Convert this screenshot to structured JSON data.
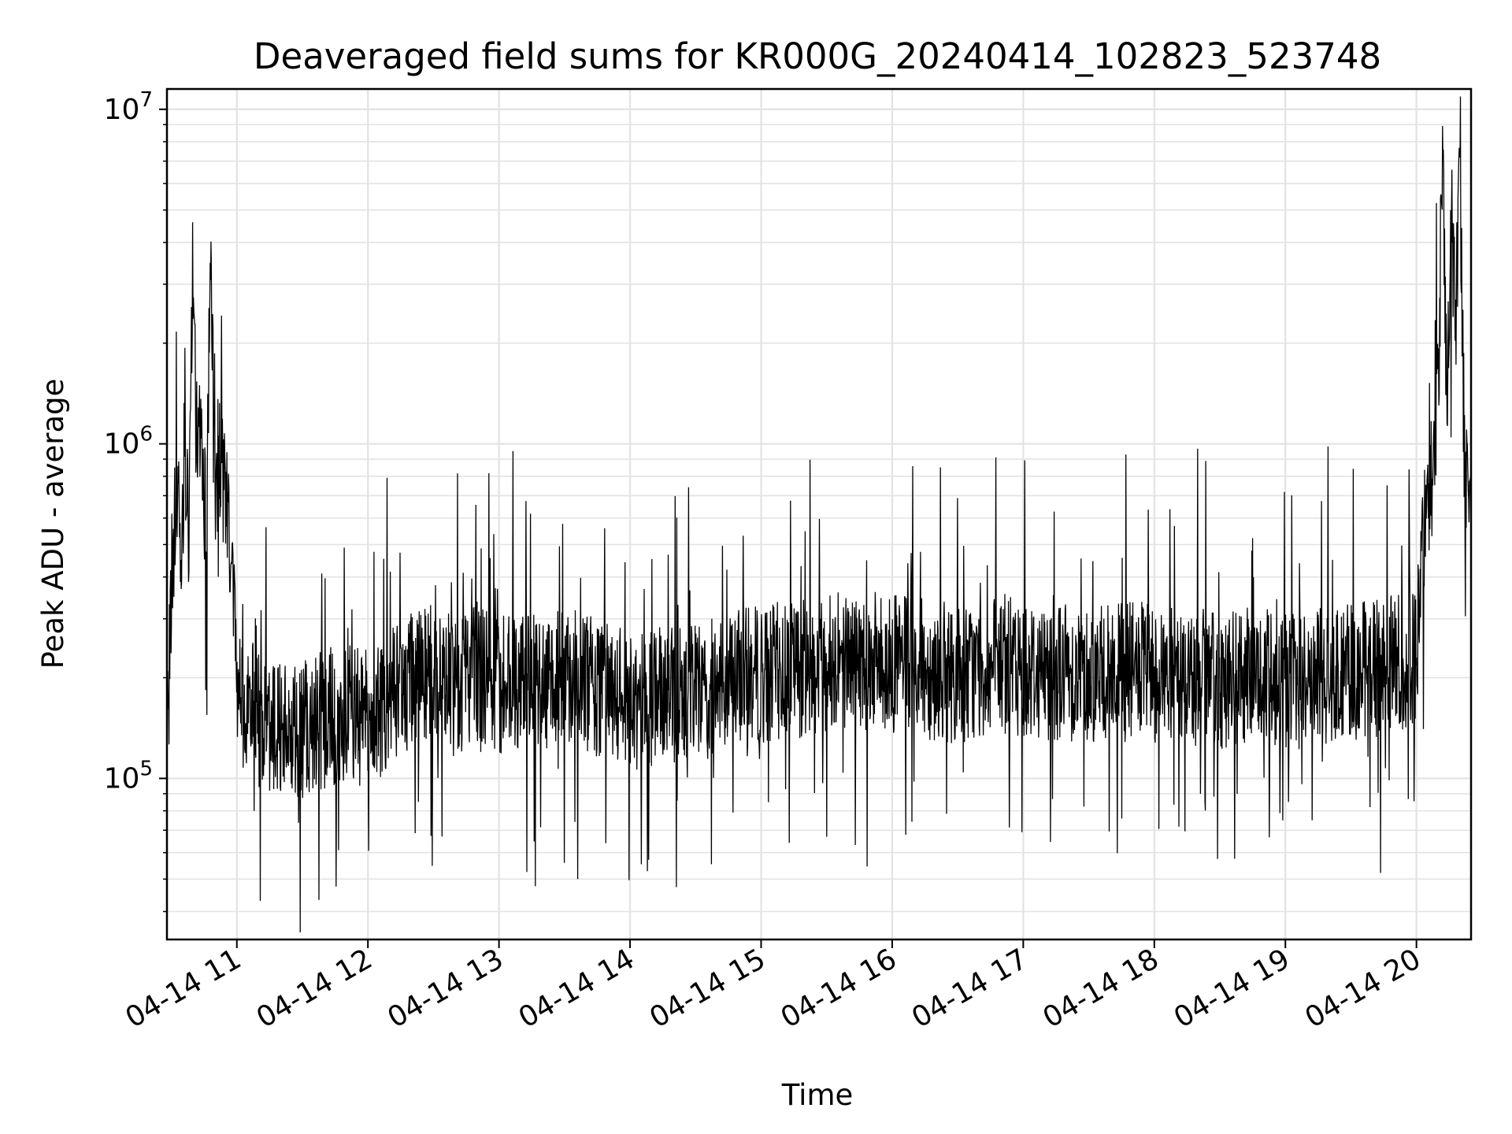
{
  "chart_data": {
    "type": "line",
    "title": "Deaveraged field sums for KR000G_20240414_102823_523748",
    "xlabel": "Time",
    "ylabel": "Peak ADU - average",
    "yscale": "log",
    "ylim": [
      33000,
      11500000
    ],
    "xlim": [
      "2024-04-14 10:28",
      "2024-04-14 20:25"
    ],
    "grid": true,
    "line_color": "#000000",
    "x_ticks": [
      "04-14 11",
      "04-14 12",
      "04-14 13",
      "04-14 14",
      "04-14 15",
      "04-14 16",
      "04-14 17",
      "04-14 18",
      "04-14 19",
      "04-14 20"
    ],
    "y_ticks": [
      {
        "base": "10",
        "exp": "5"
      },
      {
        "base": "10",
        "exp": "6"
      },
      {
        "base": "10",
        "exp": "7"
      }
    ],
    "series": [
      {
        "x": [
          "2024-04-14 10:28",
          "2024-04-14 10:30",
          "2024-04-14 10:32",
          "2024-04-14 10:34",
          "2024-04-14 10:36",
          "2024-04-14 10:38",
          "2024-04-14 10:40",
          "2024-04-14 10:42",
          "2024-04-14 10:44",
          "2024-04-14 10:46",
          "2024-04-14 10:48",
          "2024-04-14 10:50",
          "2024-04-14 10:52",
          "2024-04-14 10:54",
          "2024-04-14 10:56",
          "2024-04-14 10:58",
          "2024-04-14 11:00",
          "2024-04-14 11:10",
          "2024-04-14 11:20",
          "2024-04-14 11:30",
          "2024-04-14 11:40",
          "2024-04-14 11:50",
          "2024-04-14 12:00",
          "2024-04-14 12:10",
          "2024-04-14 12:20",
          "2024-04-14 12:30",
          "2024-04-14 12:40",
          "2024-04-14 12:50",
          "2024-04-14 13:00",
          "2024-04-14 13:10",
          "2024-04-14 13:20",
          "2024-04-14 13:30",
          "2024-04-14 13:40",
          "2024-04-14 13:50",
          "2024-04-14 14:00",
          "2024-04-14 14:10",
          "2024-04-14 14:20",
          "2024-04-14 14:30",
          "2024-04-14 14:40",
          "2024-04-14 14:50",
          "2024-04-14 15:00",
          "2024-04-14 15:10",
          "2024-04-14 15:20",
          "2024-04-14 15:30",
          "2024-04-14 15:40",
          "2024-04-14 15:50",
          "2024-04-14 16:00",
          "2024-04-14 16:10",
          "2024-04-14 16:20",
          "2024-04-14 16:30",
          "2024-04-14 16:40",
          "2024-04-14 16:50",
          "2024-04-14 17:00",
          "2024-04-14 17:10",
          "2024-04-14 17:20",
          "2024-04-14 17:30",
          "2024-04-14 17:40",
          "2024-04-14 17:50",
          "2024-04-14 18:00",
          "2024-04-14 18:10",
          "2024-04-14 18:20",
          "2024-04-14 18:30",
          "2024-04-14 18:40",
          "2024-04-14 18:50",
          "2024-04-14 19:00",
          "2024-04-14 19:10",
          "2024-04-14 19:20",
          "2024-04-14 19:30",
          "2024-04-14 19:40",
          "2024-04-14 19:50",
          "2024-04-14 19:55",
          "2024-04-14 20:00",
          "2024-04-14 20:02",
          "2024-04-14 20:04",
          "2024-04-14 20:06",
          "2024-04-14 20:08",
          "2024-04-14 20:10",
          "2024-04-14 20:12",
          "2024-04-14 20:14",
          "2024-04-14 20:16",
          "2024-04-14 20:18",
          "2024-04-14 20:20",
          "2024-04-14 20:22",
          "2024-04-14 20:24"
        ],
        "y": [
          100000,
          400000,
          700000,
          500000,
          900000,
          600000,
          3700000,
          800000,
          1200000,
          500000,
          4200000,
          600000,
          1000000,
          700000,
          550000,
          450000,
          180000,
          150000,
          145000,
          140000,
          150000,
          160000,
          150000,
          170000,
          200000,
          210000,
          185000,
          210000,
          190000,
          200000,
          195000,
          210000,
          190000,
          180000,
          170000,
          175000,
          175000,
          180000,
          190000,
          200000,
          205000,
          210000,
          215000,
          225000,
          230000,
          225000,
          220000,
          215000,
          210000,
          205000,
          210000,
          215000,
          215000,
          210000,
          210000,
          205000,
          205000,
          210000,
          205000,
          200000,
          200000,
          195000,
          200000,
          200000,
          195000,
          200000,
          205000,
          210000,
          215000,
          220000,
          225000,
          230000,
          400000,
          550000,
          700000,
          900000,
          1400000,
          9200000,
          1200000,
          5000000,
          2500000,
          6000000,
          900000,
          750000
        ]
      }
    ]
  }
}
